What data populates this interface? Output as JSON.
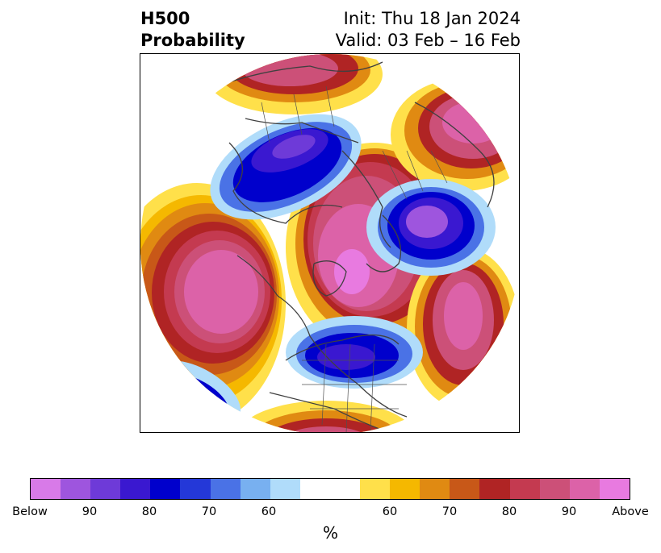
{
  "title": {
    "left": "H500\nProbability",
    "right": "Init: Thu 18 Jan 2024\nValid: 03 Feb – 16 Feb"
  },
  "colorbar": {
    "unit_label": "%",
    "segments": [
      "#d87ae8",
      "#9e55de",
      "#6e3ad8",
      "#3a18d0",
      "#0000cc",
      "#2438d8",
      "#4a72e6",
      "#78b0f0",
      "#b0dcfa",
      "#ffffff",
      "#ffe04a",
      "#f5b800",
      "#e08a12",
      "#c85818",
      "#b02424",
      "#c43a50",
      "#cc5078",
      "#dc62a8",
      "#e87ae0"
    ],
    "ticks": [
      "Below",
      "90",
      "80",
      "70",
      "60",
      "60",
      "70",
      "80",
      "90",
      "Above"
    ]
  },
  "map": {
    "description_colors": {
      "below_deep": "#6e3ad8",
      "below_mid": "#0000cc",
      "below_light": "#b0dcfa",
      "above_light": "#ffe04a",
      "above_mid": "#b02424",
      "above_deep": "#dc62a8"
    }
  }
}
